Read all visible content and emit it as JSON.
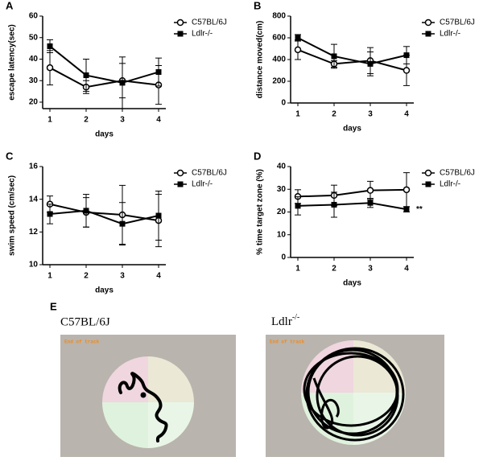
{
  "chart_data": [
    {
      "type": "line",
      "panel_label": "A",
      "xlabel": "days",
      "ylabel": "escape latency(sec)",
      "x": [
        1,
        2,
        3,
        4
      ],
      "xlim": [
        0.8,
        4.2
      ],
      "xticks": [
        1,
        2,
        3,
        4
      ],
      "ylim": [
        17,
        60
      ],
      "yticks": [
        20,
        30,
        40,
        50,
        60
      ],
      "legend": "upper right",
      "series": [
        {
          "name": "C57BL/6J",
          "color": "#000000",
          "marker": "open-circle",
          "values": [
            36,
            27,
            30,
            28
          ],
          "errors": [
            8,
            3,
            8,
            9
          ]
        },
        {
          "name": "Ldlr-/-",
          "color": "#000000",
          "marker": "filled-square",
          "values": [
            46,
            32.5,
            29,
            34
          ],
          "errors": [
            3,
            7.5,
            12,
            6.5
          ]
        }
      ]
    },
    {
      "type": "line",
      "panel_label": "B",
      "xlabel": "days",
      "ylabel": "distance moved(cm)",
      "x": [
        1,
        2,
        3,
        4
      ],
      "xlim": [
        0.8,
        4.2
      ],
      "xticks": [
        1,
        2,
        3,
        4
      ],
      "ylim": [
        0,
        800
      ],
      "yticks": [
        0,
        200,
        400,
        600,
        800
      ],
      "legend": "upper right",
      "series": [
        {
          "name": "C57BL/6J",
          "color": "#000000",
          "marker": "open-circle",
          "values": [
            490,
            360,
            390,
            300
          ],
          "errors": [
            90,
            30,
            120,
            140
          ]
        },
        {
          "name": "Ldlr-/-",
          "color": "#000000",
          "marker": "filled-square",
          "values": [
            600,
            430,
            360,
            440
          ],
          "errors": [
            30,
            110,
            110,
            80
          ]
        }
      ]
    },
    {
      "type": "line",
      "panel_label": "C",
      "xlabel": "days",
      "ylabel": "swim speed (cm/sec)",
      "x": [
        1,
        2,
        3,
        4
      ],
      "xlim": [
        0.8,
        4.2
      ],
      "xticks": [
        1,
        2,
        3,
        4
      ],
      "ylim": [
        10,
        16
      ],
      "yticks": [
        10,
        12,
        14,
        16
      ],
      "legend": "upper right",
      "series": [
        {
          "name": "C57BL/6J",
          "color": "#000000",
          "marker": "open-circle",
          "values": [
            13.7,
            13.2,
            13.05,
            12.7
          ],
          "errors": [
            0.5,
            0.9,
            1.8,
            1.6
          ]
        },
        {
          "name": "Ldlr-/-",
          "color": "#000000",
          "marker": "filled-square",
          "values": [
            13.1,
            13.3,
            12.5,
            13.0
          ],
          "errors": [
            0.6,
            1.0,
            1.3,
            1.5
          ]
        }
      ]
    },
    {
      "type": "line",
      "panel_label": "D",
      "xlabel": "days",
      "ylabel": "% time target zone (%)",
      "x": [
        1,
        2,
        3,
        4
      ],
      "xlim": [
        0.8,
        4.2
      ],
      "xticks": [
        1,
        2,
        3,
        4
      ],
      "ylim": [
        0,
        40
      ],
      "yticks": [
        0,
        10,
        20,
        30,
        40
      ],
      "legend": "upper right",
      "annotation": "**",
      "series": [
        {
          "name": "C57BL/6J",
          "color": "#000000",
          "marker": "open-circle",
          "values": [
            26.8,
            27.3,
            29.5,
            29.8
          ],
          "errors": [
            3,
            4.5,
            4,
            7.5
          ]
        },
        {
          "name": "Ldlr-/-",
          "color": "#000000",
          "marker": "filled-square",
          "values": [
            22.7,
            23.2,
            24,
            21.2
          ],
          "errors": [
            4,
            5.5,
            2,
            1.2
          ]
        }
      ]
    }
  ],
  "panel_e": {
    "label": "E",
    "images": [
      {
        "title": "C57BL/6J",
        "caption": "End of track"
      },
      {
        "title": "Ldlr",
        "title_sup": "-/-",
        "caption": "End of track"
      }
    ]
  }
}
